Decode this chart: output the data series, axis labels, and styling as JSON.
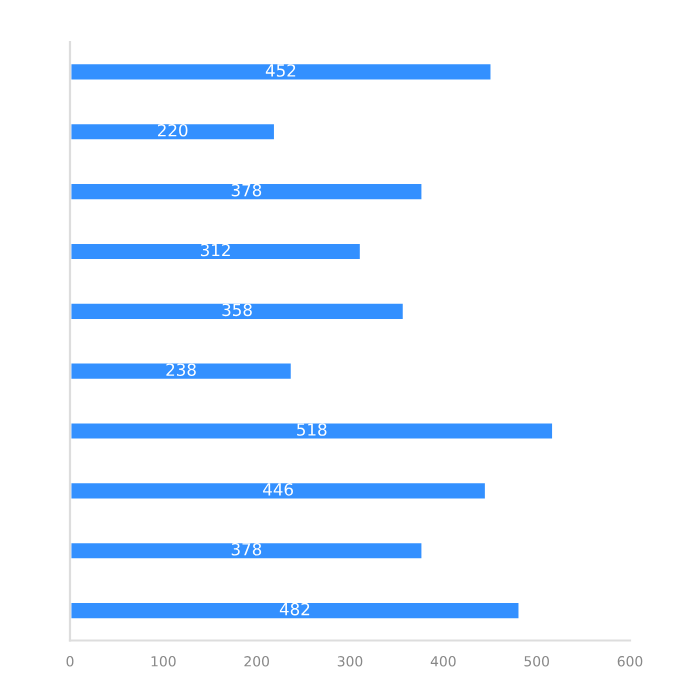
{
  "chart_data": {
    "type": "bar",
    "orientation": "horizontal",
    "categories": [
      null,
      null,
      null,
      null,
      null,
      null,
      null,
      null,
      null,
      null
    ],
    "values": [
      452,
      220,
      378,
      312,
      358,
      238,
      518,
      446,
      378,
      482
    ],
    "color": "#3390ff",
    "xlim": [
      0,
      600
    ],
    "xticks": [
      0,
      100,
      200,
      300,
      400,
      500,
      600
    ],
    "data_labels": true,
    "grid": false
  }
}
